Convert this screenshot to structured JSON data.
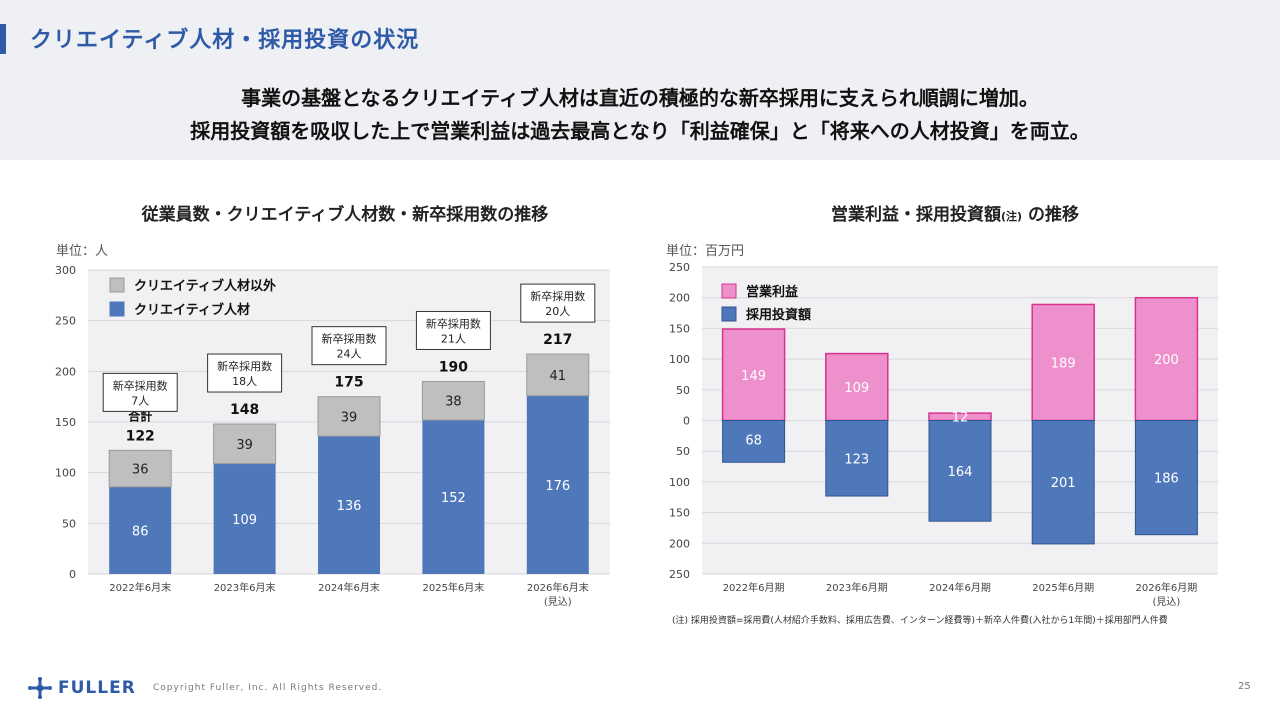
{
  "page": {
    "title": "クリエイティブ人材・採用投資の状況",
    "lead_line1": "事業の基盤となるクリエイティブ人材は直近の積極的な新卒採用に支えられ順調に増加。",
    "lead_line2": "採用投資額を吸収した上で営業利益は過去最高となり「利益確保」と「将来への人材投資」を両立。",
    "note": "(注) 採用投資額=採用費(人材紹介手数料、採用広告費、インターン経費等)＋新卒人件費(入社から1年間)＋採用部門人件費",
    "logo": "FULLER",
    "copyright": "Copyright Fuller, Inc. All Rights Reserved.",
    "page_number": "25",
    "colors": {
      "accent": "#2f5aa8",
      "blue": "#4f78bb",
      "gray": "#bfbfbf",
      "pink": "#ee90cc",
      "pink_border": "#d6338f"
    }
  },
  "chart_data": [
    {
      "type": "bar",
      "stacked": true,
      "title": "従業員数・クリエイティブ人材数・新卒採用数の推移",
      "unit": "単位：人",
      "categories": [
        "2022年6月末",
        "2023年6月末",
        "2024年6月末",
        "2025年6月末",
        "2026年6月末"
      ],
      "category_notes": [
        "",
        "",
        "",
        "",
        "(見込)"
      ],
      "series": [
        {
          "name": "クリエイティブ人材",
          "values": [
            86,
            109,
            136,
            152,
            176
          ],
          "color": "#4f78bb"
        },
        {
          "name": "クリエイティブ人材以外",
          "values": [
            36,
            39,
            39,
            38,
            41
          ],
          "color": "#bfbfbf"
        }
      ],
      "totals": [
        122,
        148,
        175,
        190,
        217
      ],
      "total_label": "合計",
      "callout_label": "新卒採用数",
      "new_grad_hires": [
        "7人",
        "18人",
        "24人",
        "21人",
        "20人"
      ],
      "ylim": [
        0,
        300
      ],
      "yticks": [
        0,
        50,
        100,
        150,
        200,
        250,
        300
      ],
      "grid": true,
      "legend": "top-left"
    },
    {
      "type": "bar",
      "diverging": true,
      "title": "営業利益・採用投資額",
      "title_note": "(注)",
      "title_suffix": " の推移",
      "unit": "単位：百万円",
      "categories": [
        "2022年6月期",
        "2023年6月期",
        "2024年6月期",
        "2025年6月期",
        "2026年6月期"
      ],
      "category_notes": [
        "",
        "",
        "",
        "",
        "(見込)"
      ],
      "series": [
        {
          "name": "営業利益",
          "values": [
            149,
            109,
            12,
            189,
            200
          ],
          "color": "#ee90cc",
          "direction": "up"
        },
        {
          "name": "採用投資額",
          "values": [
            68,
            123,
            164,
            201,
            186
          ],
          "color": "#4f78bb",
          "direction": "down"
        }
      ],
      "ylim": [
        -250,
        250
      ],
      "ytick_labels": [
        "250",
        "200",
        "150",
        "100",
        "50",
        "0",
        "50",
        "100",
        "150",
        "200",
        "250"
      ],
      "grid": true,
      "legend": "top-left"
    }
  ]
}
